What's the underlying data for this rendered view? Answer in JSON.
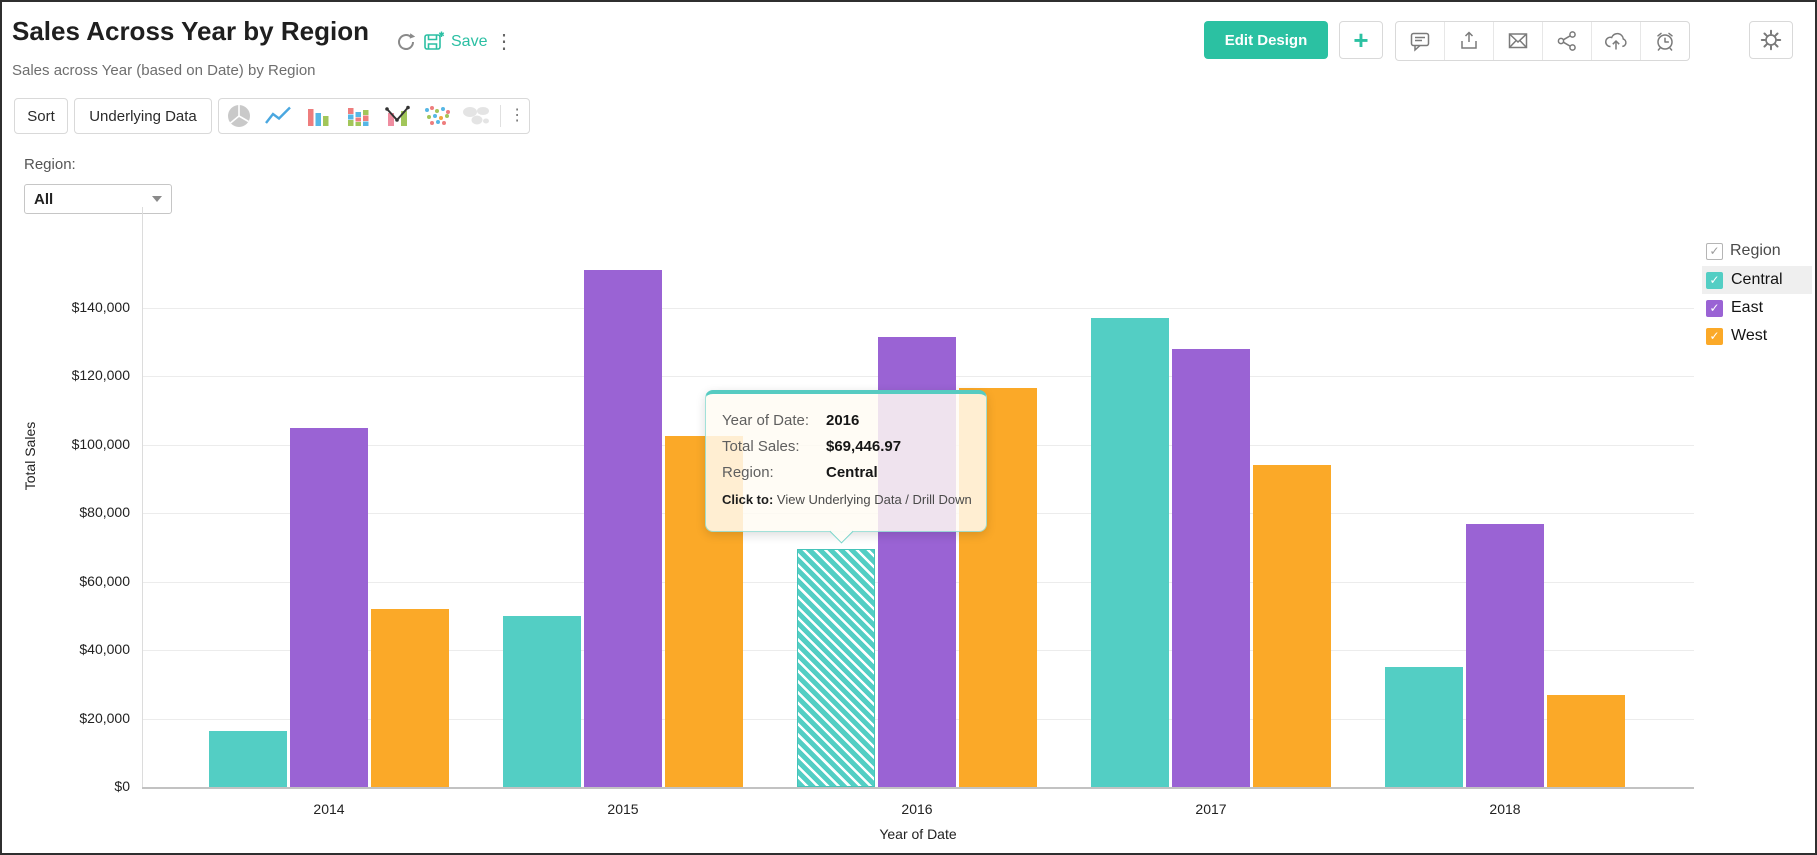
{
  "header": {
    "title": "Sales Across Year by Region",
    "subtitle": "Sales across Year (based on Date) by Region",
    "save_label": "Save",
    "edit_design_label": "Edit Design",
    "plus_label": "+"
  },
  "toolbar": {
    "sort_label": "Sort",
    "underlying_data_label": "Underlying Data",
    "chart_types": [
      "pie",
      "line",
      "bar",
      "stacked-bar",
      "combo",
      "scatter",
      "map"
    ]
  },
  "filter": {
    "label": "Region:",
    "value": "All"
  },
  "legend": {
    "title": "Region",
    "items": [
      {
        "label": "Central",
        "color": "#53cec4",
        "checked": true,
        "highlighted": true
      },
      {
        "label": "East",
        "color": "#9a63d4",
        "checked": true,
        "highlighted": false
      },
      {
        "label": "West",
        "color": "#fba928",
        "checked": true,
        "highlighted": false
      }
    ]
  },
  "tooltip": {
    "rows": [
      {
        "label": "Year of Date:",
        "value": "2016"
      },
      {
        "label": "Total Sales:",
        "value": "$69,446.97"
      },
      {
        "label": "Region:",
        "value": "Central"
      }
    ],
    "click_label": "Click to:",
    "click_value": "View Underlying Data / Drill Down"
  },
  "chart_data": {
    "type": "bar",
    "title": "Sales Across Year by Region",
    "categories": [
      "2014",
      "2015",
      "2016",
      "2017",
      "2018"
    ],
    "series": [
      {
        "name": "Central",
        "color": "#53cec4",
        "values": [
          16500,
          50000,
          69446.97,
          137000,
          35000
        ]
      },
      {
        "name": "East",
        "color": "#9a63d4",
        "values": [
          105000,
          151000,
          131500,
          128000,
          77000
        ]
      },
      {
        "name": "West",
        "color": "#fba928",
        "values": [
          52000,
          102500,
          116500,
          94000,
          27000
        ]
      }
    ],
    "xlabel": "Year of Date",
    "ylabel": "Total Sales",
    "ylim": [
      0,
      160000
    ],
    "ytick_step": 20000,
    "ytick_labels": [
      "$0",
      "$20,000",
      "$40,000",
      "$60,000",
      "$80,000",
      "$100,000",
      "$120,000",
      "$140,000"
    ],
    "grid": "horizontal",
    "legend_position": "right",
    "highlighted_bar": {
      "category": "2016",
      "series": "Central",
      "value_label": "$69,446.97"
    }
  },
  "colors": {
    "accent_teal": "#2bc1a2",
    "bar_central": "#53cec4",
    "bar_east": "#9a63d4",
    "bar_west": "#fba928"
  }
}
